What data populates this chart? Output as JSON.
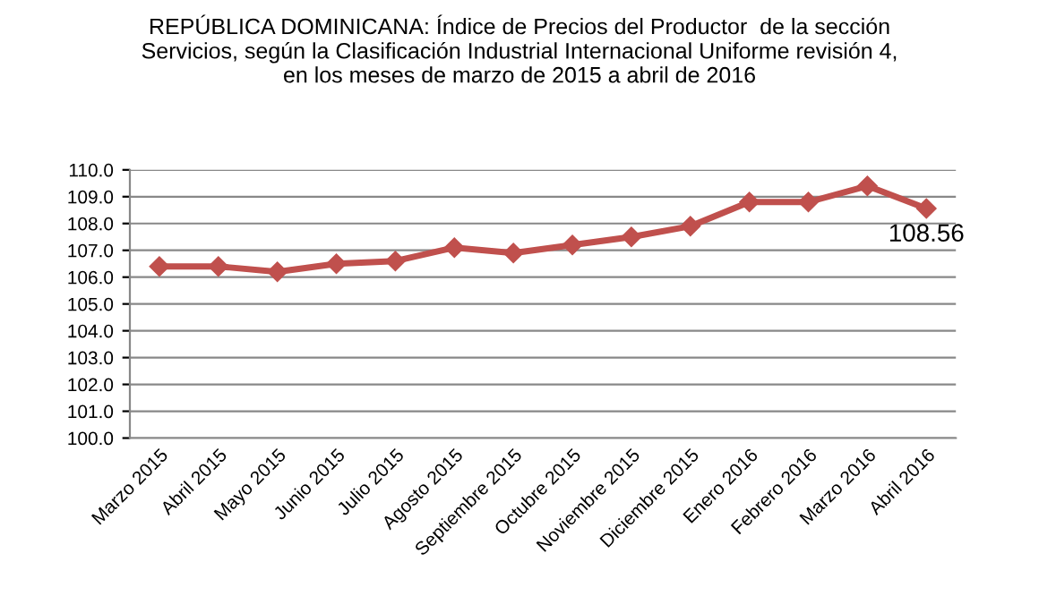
{
  "chart_data": {
    "type": "line",
    "title": "REPÚBLICA DOMINICANA: Índice de Precios del Productor  de la sección\nServicios, según la Clasificación Industrial Internacional Uniforme revisión 4,\nen los meses de marzo de 2015 a abril de 2016",
    "categories": [
      "Marzo 2015",
      "Abril 2015",
      "Mayo 2015",
      "Junio 2015",
      "Julio 2015",
      "Agosto 2015",
      "Septiembre 2015",
      "Octubre 2015",
      "Noviembre 2015",
      "Diciembre 2015",
      "Enero 2016",
      "Febrero 2016",
      "Marzo 2016",
      "Abril 2016"
    ],
    "series": [
      {
        "color": "#c0504d",
        "values": [
          106.4,
          106.4,
          106.2,
          106.5,
          106.6,
          107.1,
          106.9,
          107.2,
          107.5,
          107.9,
          108.8,
          108.8,
          109.4,
          108.56
        ],
        "value_labels": [
          null,
          null,
          null,
          null,
          null,
          null,
          null,
          null,
          null,
          null,
          null,
          null,
          null,
          "108.56"
        ]
      }
    ],
    "ylim": [
      100,
      110
    ],
    "yticks": [
      {
        "value": 100,
        "label": "100.0"
      },
      {
        "value": 101,
        "label": "101.0"
      },
      {
        "value": 102,
        "label": "102.0"
      },
      {
        "value": 103,
        "label": "103.0"
      },
      {
        "value": 104,
        "label": "104.0"
      },
      {
        "value": 105,
        "label": "105.0"
      },
      {
        "value": 106,
        "label": "106.0"
      },
      {
        "value": 107,
        "label": "107.0"
      },
      {
        "value": 108,
        "label": "108.0"
      },
      {
        "value": 109,
        "label": "109.0"
      },
      {
        "value": 110,
        "label": "110.0"
      }
    ],
    "grid": "y",
    "marker": "diamond",
    "line_style": "solid"
  }
}
